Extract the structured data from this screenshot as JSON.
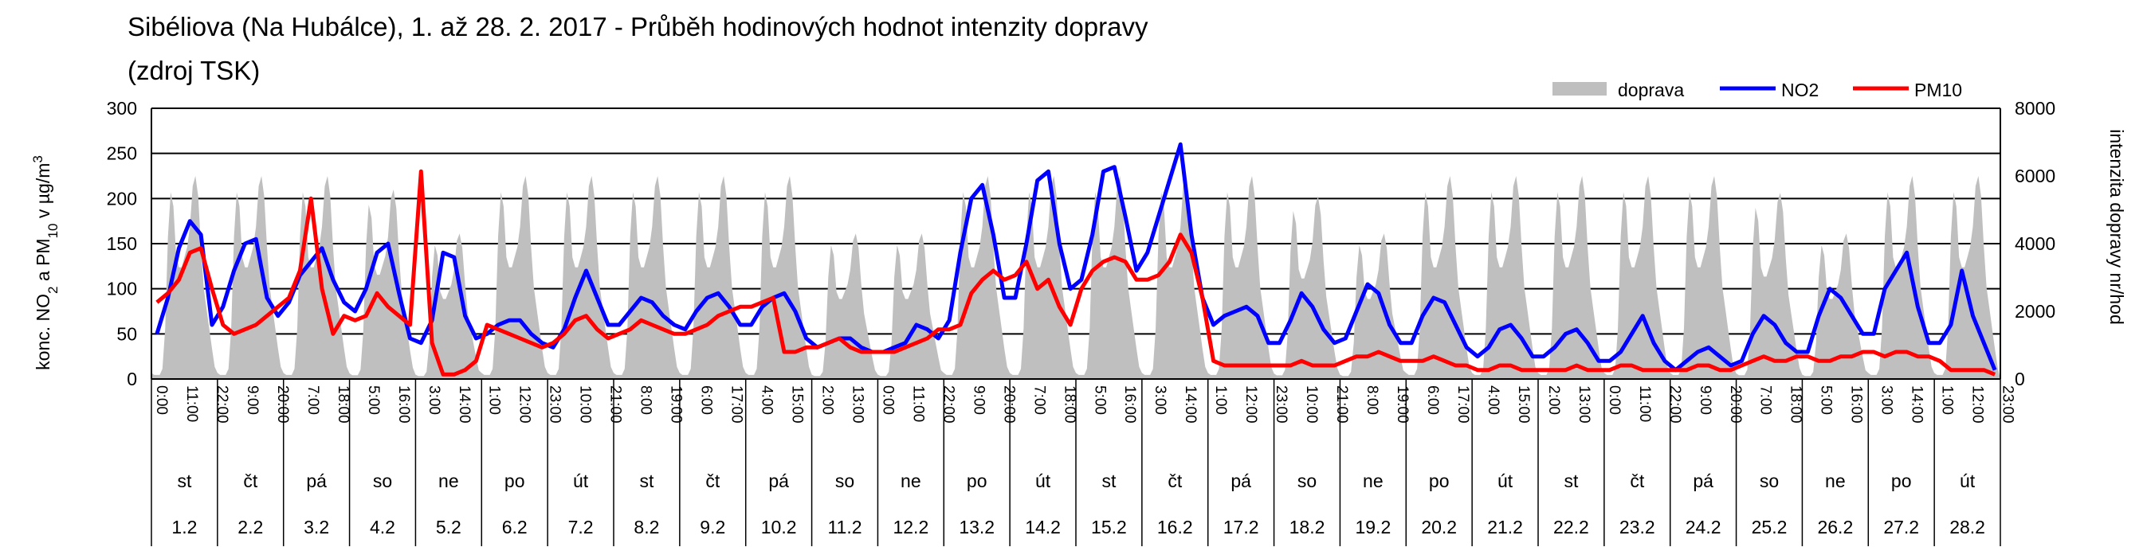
{
  "chart_data": {
    "type": "line",
    "title_line1": "Sibéliova (Na Hubálce), 1. až 28. 2. 2017 - Průběh hodinových hodnot intenzity dopravy",
    "title_line2": "(zdroj TSK)",
    "ylabel_left_main": "konc. NO",
    "ylabel_left_sub1": "2",
    "ylabel_left_mid": " a PM",
    "ylabel_left_sub2": "10",
    "ylabel_left_end": " v µg/m",
    "ylabel_left_sup": "3",
    "ylabel_right": "intenzita dopravy nr/hod",
    "ylim_left": [
      0,
      300
    ],
    "ylim_right": [
      0,
      8000
    ],
    "yticks_left": [
      "0",
      "50",
      "100",
      "150",
      "200",
      "250",
      "300"
    ],
    "yticks_right": [
      "0",
      "2000",
      "4000",
      "6000",
      "8000"
    ],
    "grid": "horizontal",
    "legend_position": "top-right",
    "legend": [
      {
        "name": "doprava",
        "color": "#bfbfbf",
        "kind": "area"
      },
      {
        "name": "NO2",
        "color": "#0000ff",
        "kind": "line"
      },
      {
        "name": "PM10",
        "color": "#ff0000",
        "kind": "line"
      }
    ],
    "hour_labels": [
      "0:00",
      "11:00",
      "22:00",
      "9:00",
      "20:00",
      "7:00",
      "18:00",
      "5:00",
      "16:00",
      "3:00",
      "14:00",
      "1:00",
      "12:00",
      "23:00",
      "10:00",
      "21:00",
      "8:00",
      "19:00",
      "6:00",
      "17:00",
      "4:00",
      "15:00",
      "2:00",
      "13:00",
      "0:00",
      "11:00",
      "22:00",
      "9:00",
      "20:00",
      "7:00",
      "18:00",
      "5:00",
      "16:00",
      "3:00",
      "14:00",
      "1:00",
      "12:00",
      "23:00",
      "10:00",
      "21:00",
      "8:00",
      "19:00",
      "6:00",
      "17:00",
      "4:00",
      "15:00",
      "2:00",
      "13:00",
      "0:00",
      "11:00",
      "22:00",
      "9:00",
      "20:00",
      "7:00",
      "18:00",
      "5:00",
      "16:00",
      "3:00",
      "14:00",
      "1:00",
      "12:00",
      "23:00"
    ],
    "days": [
      {
        "day": "st",
        "date": "1.2"
      },
      {
        "day": "čt",
        "date": "2.2"
      },
      {
        "day": "pá",
        "date": "3.2"
      },
      {
        "day": "so",
        "date": "4.2"
      },
      {
        "day": "ne",
        "date": "5.2"
      },
      {
        "day": "po",
        "date": "6.2"
      },
      {
        "day": "út",
        "date": "7.2"
      },
      {
        "day": "st",
        "date": "8.2"
      },
      {
        "day": "čt",
        "date": "9.2"
      },
      {
        "day": "pá",
        "date": "10.2"
      },
      {
        "day": "so",
        "date": "11.2"
      },
      {
        "day": "ne",
        "date": "12.2"
      },
      {
        "day": "po",
        "date": "13.2"
      },
      {
        "day": "út",
        "date": "14.2"
      },
      {
        "day": "st",
        "date": "15.2"
      },
      {
        "day": "čt",
        "date": "16.2"
      },
      {
        "day": "pá",
        "date": "17.2"
      },
      {
        "day": "so",
        "date": "18.2"
      },
      {
        "day": "ne",
        "date": "19.2"
      },
      {
        "day": "po",
        "date": "20.2"
      },
      {
        "day": "út",
        "date": "21.2"
      },
      {
        "day": "st",
        "date": "22.2"
      },
      {
        "day": "čt",
        "date": "23.2"
      },
      {
        "day": "pá",
        "date": "24.2"
      },
      {
        "day": "so",
        "date": "25.2"
      },
      {
        "day": "ne",
        "date": "26.2"
      },
      {
        "day": "po",
        "date": "27.2"
      },
      {
        "day": "út",
        "date": "28.2"
      }
    ],
    "series": [
      {
        "name": "doprava",
        "axis": "right",
        "sampling": "4-hour",
        "daily_peaks": [
          6000,
          6000,
          6000,
          5600,
          4300,
          6000,
          6000,
          6000,
          6000,
          6000,
          4300,
          4300,
          6000,
          6000,
          6000,
          6000,
          6000,
          5400,
          4300,
          6000,
          6000,
          6000,
          6000,
          6000,
          5500,
          4300,
          6000,
          6000
        ],
        "values": [
          0,
          2800,
          5700,
          5800,
          2400,
          300,
          0,
          2800,
          5700,
          5800,
          2400,
          300,
          0,
          2800,
          5700,
          5800,
          2400,
          300,
          0,
          1400,
          4500,
          5400,
          2900,
          400,
          0,
          800,
          3400,
          4300,
          2700,
          400,
          0,
          2800,
          5700,
          5800,
          2400,
          300,
          0,
          2800,
          5700,
          5800,
          2400,
          300,
          0,
          2800,
          5700,
          5800,
          2400,
          300,
          0,
          2800,
          5700,
          5800,
          2400,
          300,
          0,
          2800,
          5700,
          5800,
          2400,
          300,
          0,
          800,
          3400,
          4300,
          2700,
          400,
          0,
          800,
          3400,
          4300,
          2700,
          400,
          0,
          2800,
          5700,
          5800,
          2400,
          300,
          0,
          2800,
          5700,
          5800,
          2400,
          300,
          0,
          2800,
          5700,
          5800,
          2400,
          300,
          0,
          2800,
          5700,
          5800,
          2400,
          300,
          0,
          2800,
          5700,
          5800,
          2400,
          300,
          0,
          1400,
          4400,
          5200,
          2800,
          400,
          0,
          800,
          3400,
          4300,
          2700,
          400,
          0,
          2800,
          5700,
          5800,
          2400,
          300,
          0,
          2800,
          5700,
          5800,
          2400,
          300,
          0,
          2800,
          5700,
          5800,
          2400,
          300,
          0,
          2800,
          5700,
          5800,
          2400,
          300,
          0,
          2800,
          5700,
          5800,
          2400,
          300,
          0,
          1400,
          4500,
          5400,
          2900,
          400,
          0,
          800,
          3400,
          4300,
          2700,
          400,
          0,
          2800,
          5700,
          5800,
          2400,
          300,
          0,
          2800,
          5700,
          5800,
          2400,
          300
        ]
      },
      {
        "name": "NO2",
        "axis": "left",
        "sampling": "4-hour",
        "values": [
          50,
          90,
          145,
          175,
          160,
          60,
          80,
          120,
          150,
          155,
          90,
          70,
          85,
          115,
          130,
          145,
          110,
          85,
          75,
          100,
          140,
          150,
          95,
          45,
          40,
          65,
          140,
          135,
          70,
          45,
          50,
          60,
          65,
          65,
          50,
          40,
          35,
          55,
          90,
          120,
          90,
          60,
          60,
          75,
          90,
          85,
          70,
          60,
          55,
          75,
          90,
          95,
          80,
          60,
          60,
          80,
          90,
          95,
          75,
          45,
          35,
          40,
          45,
          45,
          35,
          30,
          30,
          35,
          40,
          60,
          55,
          45,
          65,
          140,
          200,
          215,
          160,
          90,
          90,
          150,
          220,
          230,
          150,
          100,
          110,
          160,
          230,
          235,
          180,
          120,
          140,
          180,
          220,
          260,
          160,
          90,
          60,
          70,
          75,
          80,
          70,
          40,
          40,
          65,
          95,
          80,
          55,
          40,
          45,
          75,
          105,
          95,
          60,
          40,
          40,
          70,
          90,
          85,
          60,
          35,
          25,
          35,
          55,
          60,
          45,
          25,
          25,
          35,
          50,
          55,
          40,
          20,
          20,
          30,
          50,
          70,
          40,
          20,
          10,
          20,
          30,
          35,
          25,
          15,
          20,
          50,
          70,
          60,
          40,
          30,
          30,
          70,
          100,
          90,
          70,
          50,
          50,
          100,
          120,
          140,
          80,
          40,
          40,
          60,
          120,
          70,
          40,
          10
        ]
      },
      {
        "name": "PM10",
        "axis": "left",
        "sampling": "4-hour",
        "values": [
          85,
          95,
          110,
          140,
          145,
          100,
          60,
          50,
          55,
          60,
          70,
          80,
          90,
          120,
          200,
          100,
          50,
          70,
          65,
          70,
          95,
          80,
          70,
          60,
          230,
          40,
          5,
          5,
          10,
          20,
          60,
          55,
          50,
          45,
          40,
          35,
          40,
          50,
          65,
          70,
          55,
          45,
          50,
          55,
          65,
          60,
          55,
          50,
          50,
          55,
          60,
          70,
          75,
          80,
          80,
          85,
          90,
          30,
          30,
          35,
          35,
          40,
          45,
          35,
          30,
          30,
          30,
          30,
          35,
          40,
          45,
          55,
          55,
          60,
          95,
          110,
          120,
          110,
          115,
          130,
          100,
          110,
          80,
          60,
          100,
          120,
          130,
          135,
          130,
          110,
          110,
          115,
          130,
          160,
          140,
          90,
          20,
          15,
          15,
          15,
          15,
          15,
          15,
          15,
          20,
          15,
          15,
          15,
          20,
          25,
          25,
          30,
          25,
          20,
          20,
          20,
          25,
          20,
          15,
          15,
          10,
          10,
          15,
          15,
          10,
          10,
          10,
          10,
          10,
          15,
          10,
          10,
          10,
          15,
          15,
          10,
          10,
          10,
          10,
          10,
          15,
          15,
          10,
          10,
          15,
          20,
          25,
          20,
          20,
          25,
          25,
          20,
          20,
          25,
          25,
          30,
          30,
          25,
          30,
          30,
          25,
          25,
          20,
          10,
          10,
          10,
          10,
          5
        ]
      }
    ]
  }
}
